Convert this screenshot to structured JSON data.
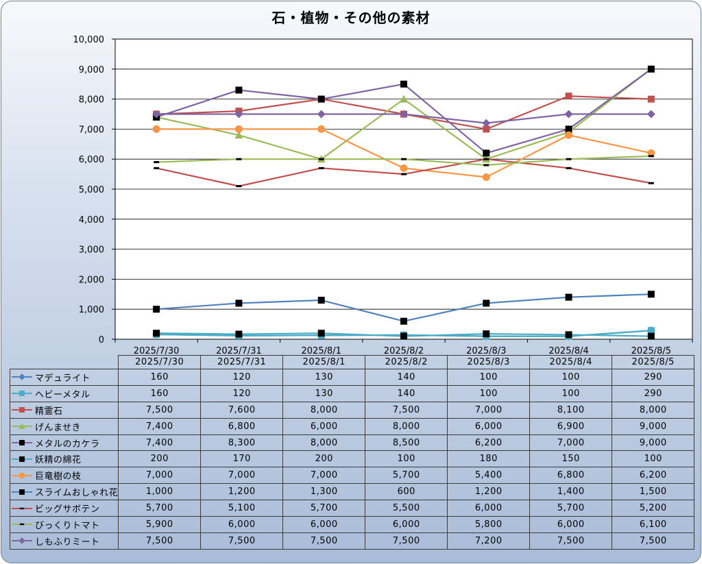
{
  "chart_data": {
    "type": "line",
    "title": "石・植物・その他の素材",
    "categories": [
      "2025/7/30",
      "2025/7/31",
      "2025/8/1",
      "2025/8/2",
      "2025/8/3",
      "2025/8/4",
      "2025/8/5"
    ],
    "ylim": [
      0,
      10000
    ],
    "yticks": [
      "0",
      "1,000",
      "2,000",
      "3,000",
      "4,000",
      "5,000",
      "6,000",
      "7,000",
      "8,000",
      "9,000",
      "10,000"
    ],
    "grid": true,
    "legend": "data-table",
    "series": [
      {
        "name": "マデュライト",
        "color": "#4f81bd",
        "marker": "diamond",
        "values": [
          160,
          120,
          130,
          140,
          100,
          100,
          290
        ],
        "labels": [
          "160",
          "120",
          "130",
          "140",
          "100",
          "100",
          "290"
        ]
      },
      {
        "name": "ヘビーメタル",
        "color": "#4bacc6",
        "marker": "square",
        "values": [
          160,
          120,
          130,
          140,
          100,
          100,
          290
        ],
        "labels": [
          "160",
          "120",
          "130",
          "140",
          "100",
          "100",
          "290"
        ]
      },
      {
        "name": "精霊石",
        "color": "#c0504d",
        "marker": "square",
        "values": [
          7500,
          7600,
          8000,
          7500,
          7000,
          8100,
          8000
        ],
        "labels": [
          "7,500",
          "7,600",
          "8,000",
          "7,500",
          "7,000",
          "8,100",
          "8,000"
        ]
      },
      {
        "name": "げんませき",
        "color": "#9bbb59",
        "marker": "triangle",
        "values": [
          7400,
          6800,
          6000,
          8000,
          6000,
          6900,
          9000
        ],
        "labels": [
          "7,400",
          "6,800",
          "6,000",
          "8,000",
          "6,000",
          "6,900",
          "9,000"
        ]
      },
      {
        "name": "メタルのカケラ",
        "color": "#8064a2",
        "marker": "blacksquare",
        "values": [
          7400,
          8300,
          8000,
          8500,
          6200,
          7000,
          9000
        ],
        "labels": [
          "7,400",
          "8,300",
          "8,000",
          "8,500",
          "6,200",
          "7,000",
          "9,000"
        ]
      },
      {
        "name": "妖精の綿花",
        "color": "#4bacc6",
        "marker": "blacksquare",
        "values": [
          200,
          170,
          200,
          100,
          180,
          150,
          100
        ],
        "labels": [
          "200",
          "170",
          "200",
          "100",
          "180",
          "150",
          "100"
        ]
      },
      {
        "name": "巨竜樹の枝",
        "color": "#f79646",
        "marker": "circle",
        "values": [
          7000,
          7000,
          7000,
          5700,
          5400,
          6800,
          6200
        ],
        "labels": [
          "7,000",
          "7,000",
          "7,000",
          "5,700",
          "5,400",
          "6,800",
          "6,200"
        ]
      },
      {
        "name": "スライムおしゃれ花",
        "color": "#4f81bd",
        "marker": "blacksquare",
        "values": [
          1000,
          1200,
          1300,
          600,
          1200,
          1400,
          1500
        ],
        "labels": [
          "1,000",
          "1,200",
          "1,300",
          "600",
          "1,200",
          "1,400",
          "1,500"
        ]
      },
      {
        "name": "ビッグサボテン",
        "color": "#c0504d",
        "marker": "dash",
        "values": [
          5700,
          5100,
          5700,
          5500,
          6000,
          5700,
          5200
        ],
        "labels": [
          "5,700",
          "5,100",
          "5,700",
          "5,500",
          "6,000",
          "5,700",
          "5,200"
        ]
      },
      {
        "name": "びっくりトマト",
        "color": "#9bbb59",
        "marker": "dash",
        "values": [
          5900,
          6000,
          6000,
          6000,
          5800,
          6000,
          6100
        ],
        "labels": [
          "5,900",
          "6,000",
          "6,000",
          "6,000",
          "5,800",
          "6,000",
          "6,100"
        ]
      },
      {
        "name": "しもふりミート",
        "color": "#8064a2",
        "marker": "diamond",
        "values": [
          7500,
          7500,
          7500,
          7500,
          7200,
          7500,
          7500
        ],
        "labels": [
          "7,500",
          "7,500",
          "7,500",
          "7,500",
          "7,200",
          "7,500",
          "7,500"
        ]
      }
    ]
  }
}
